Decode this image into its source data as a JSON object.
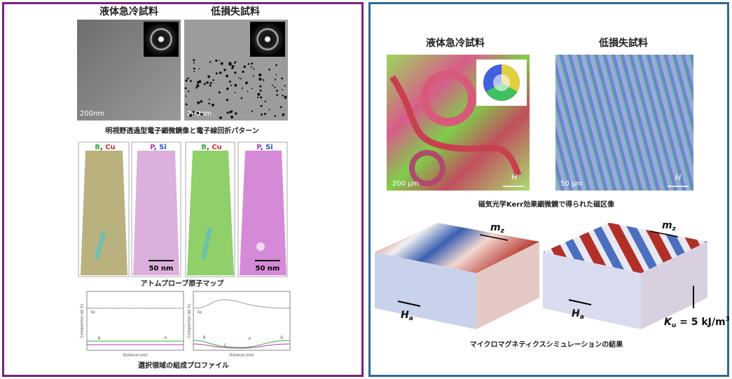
{
  "left_panel": {
    "sample_labels": [
      "液体急冷試料",
      "低損失試料"
    ],
    "tem": {
      "scale_bars": [
        "200nm",
        "200nm"
      ],
      "caption": "明視野透過型電子顕微鏡像と電子線回折パターン"
    },
    "apt": {
      "labels": [
        [
          {
            "text": "B",
            "color": "#3aa83a"
          },
          {
            "text": ", ",
            "color": "#333"
          },
          {
            "text": "Cu",
            "color": "#d0302a"
          }
        ],
        [
          {
            "text": "P",
            "color": "#b03ab0"
          },
          {
            "text": ", ",
            "color": "#333"
          },
          {
            "text": "Si",
            "color": "#2a4fd0"
          }
        ],
        [
          {
            "text": "B",
            "color": "#3aa83a"
          },
          {
            "text": ", ",
            "color": "#333"
          },
          {
            "text": "Cu",
            "color": "#d0302a"
          }
        ],
        [
          {
            "text": "P",
            "color": "#b03ab0"
          },
          {
            "text": ", ",
            "color": "#333"
          },
          {
            "text": "Si",
            "color": "#2a4fd0"
          }
        ]
      ],
      "scale_bars": [
        "50 nm",
        "50 nm"
      ],
      "caption": "アトムプローブ原子マップ"
    },
    "profiles": {
      "y_axis_title": "Composition (at.%)",
      "x_axis_title": "Distance (nm)",
      "left_labels": [
        "Fe",
        "B",
        "P"
      ],
      "right_labels": [
        "Fe",
        "B",
        "C",
        "P",
        "Si"
      ],
      "caption": "選択領域の組成プロファイル"
    }
  },
  "right_panel": {
    "sample_labels": [
      "液体急冷試料",
      "低損失試料"
    ],
    "kerr": {
      "scale_bars": [
        "200 μm",
        "50 μm"
      ],
      "field_labels": [
        "H",
        "H"
      ],
      "caption": "磁気光学Kerr効果顕微鏡で得られた磁区像"
    },
    "simulation": {
      "magnetization": [
        {
          "symbol": "m",
          "sub": "z"
        },
        {
          "symbol": "m",
          "sub": "z"
        }
      ],
      "field": [
        {
          "symbol": "H",
          "sub": "a"
        },
        {
          "symbol": "H",
          "sub": "a"
        }
      ],
      "anisotropy": {
        "symbol": "K",
        "sub": "u",
        "text": " = 5 kJ/m",
        "sup": "3"
      },
      "caption": "マイクロマグネティクスシミュレーションの結果"
    }
  }
}
